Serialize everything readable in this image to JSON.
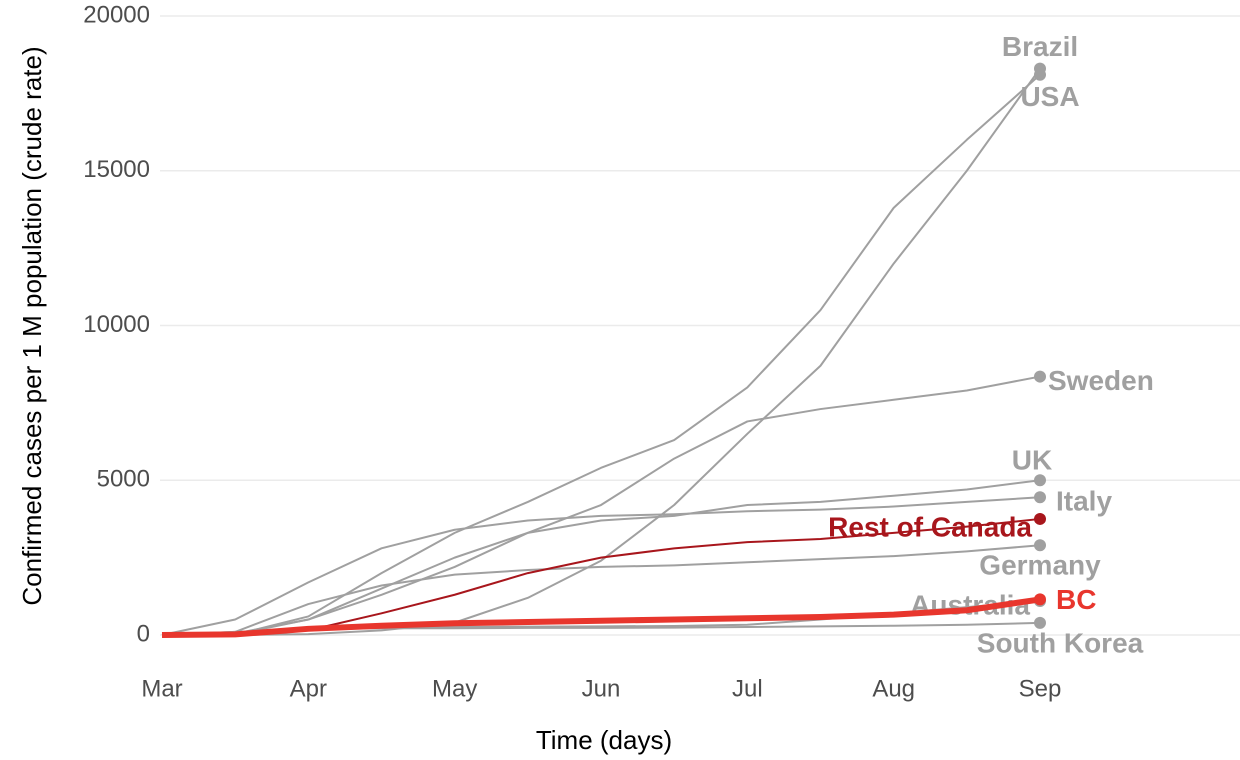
{
  "chart_data": {
    "type": "line",
    "x_label": "Time (days)",
    "y_label": "Confirmed cases per 1 M population (crude rate)",
    "categories": [
      "Mar",
      null,
      "Apr",
      null,
      "May",
      null,
      "Jun",
      null,
      "Jul",
      null,
      "Aug",
      null,
      "Sep"
    ],
    "ylim": [
      0,
      20000
    ],
    "yticks": [
      0,
      5000,
      10000,
      15000,
      20000
    ],
    "grid": true,
    "series": [
      {
        "name": "Brazil",
        "color": "#a0a0a0",
        "values": [
          0,
          0,
          30,
          150,
          400,
          1200,
          2400,
          4200,
          6500,
          8700,
          12000,
          15000,
          18300
        ]
      },
      {
        "name": "USA",
        "color": "#a0a0a0",
        "values": [
          0,
          10,
          600,
          2000,
          3300,
          4300,
          5400,
          6300,
          8000,
          10500,
          13800,
          16000,
          18100
        ]
      },
      {
        "name": "Sweden",
        "color": "#a0a0a0",
        "values": [
          0,
          50,
          500,
          1300,
          2200,
          3300,
          4200,
          5700,
          6900,
          7300,
          7600,
          7900,
          8350
        ]
      },
      {
        "name": "UK",
        "color": "#a0a0a0",
        "values": [
          0,
          20,
          500,
          1500,
          2500,
          3300,
          3700,
          3850,
          4200,
          4300,
          4500,
          4700,
          5000
        ]
      },
      {
        "name": "Italy",
        "color": "#a0a0a0",
        "values": [
          0,
          500,
          1700,
          2800,
          3400,
          3700,
          3850,
          3900,
          4000,
          4050,
          4150,
          4300,
          4450
        ]
      },
      {
        "name": "Germany",
        "color": "#a0a0a0",
        "values": [
          0,
          100,
          1000,
          1600,
          1950,
          2100,
          2200,
          2250,
          2350,
          2450,
          2550,
          2700,
          2900
        ]
      },
      {
        "name": "Australia",
        "color": "#a0a0a0",
        "values": [
          0,
          20,
          200,
          250,
          260,
          270,
          280,
          290,
          330,
          500,
          700,
          900,
          1100
        ]
      },
      {
        "name": "South Korea",
        "color": "#a0a0a0",
        "values": [
          0,
          100,
          200,
          220,
          220,
          230,
          230,
          240,
          260,
          280,
          300,
          330,
          390
        ]
      },
      {
        "name": "Rest of Canada",
        "color": "#a8161c",
        "values": [
          0,
          10,
          150,
          700,
          1300,
          2000,
          2500,
          2800,
          3000,
          3100,
          3300,
          3500,
          3750
        ]
      },
      {
        "name": "BC",
        "color": "#e8362d",
        "values": [
          0,
          20,
          200,
          300,
          380,
          420,
          460,
          500,
          540,
          580,
          660,
          800,
          1150
        ]
      }
    ]
  }
}
